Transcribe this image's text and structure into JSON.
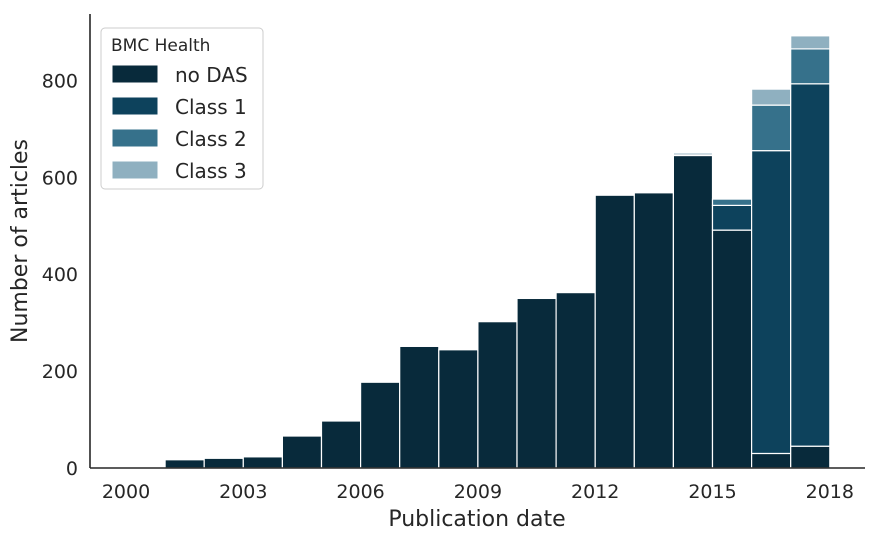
{
  "chart_data": {
    "type": "bar",
    "title": "",
    "xlabel": "Publication date",
    "ylabel": "Number of articles",
    "xlim": [
      2000,
      2018
    ],
    "ylim": [
      0,
      900
    ],
    "x_ticks": [
      "2000",
      "2003",
      "2006",
      "2009",
      "2012",
      "2015",
      "2018"
    ],
    "y_ticks": [
      "0",
      "200",
      "400",
      "600",
      "800"
    ],
    "grid": false,
    "stacked": true,
    "legend": {
      "title": "BMC Health",
      "placement": "top-left"
    },
    "bins": [
      [
        2000,
        2001
      ],
      [
        2001,
        2002
      ],
      [
        2002,
        2003
      ],
      [
        2003,
        2004
      ],
      [
        2004,
        2005
      ],
      [
        2005,
        2006
      ],
      [
        2006,
        2007
      ],
      [
        2007,
        2008
      ],
      [
        2008,
        2009
      ],
      [
        2009,
        2010
      ],
      [
        2010,
        2011
      ],
      [
        2011,
        2012
      ],
      [
        2012,
        2013
      ],
      [
        2013,
        2014
      ],
      [
        2014,
        2015
      ],
      [
        2015,
        2016
      ],
      [
        2016,
        2017
      ],
      [
        2017,
        2018
      ]
    ],
    "series": [
      {
        "name": "no DAS",
        "color": "#082a3b",
        "values": [
          0,
          17,
          20,
          23,
          66,
          97,
          177,
          251,
          244,
          302,
          350,
          362,
          563,
          568,
          645,
          491,
          30,
          45
        ]
      },
      {
        "name": "Class 1",
        "color": "#0d425c",
        "values": [
          0,
          0,
          0,
          0,
          0,
          0,
          0,
          0,
          0,
          0,
          0,
          0,
          0,
          0,
          3,
          51,
          625,
          748
        ]
      },
      {
        "name": "Class 2",
        "color": "#36718b",
        "values": [
          0,
          0,
          0,
          0,
          0,
          0,
          0,
          0,
          0,
          0,
          0,
          0,
          0,
          0,
          3,
          13,
          94,
          72
        ]
      },
      {
        "name": "Class 3",
        "color": "#8fb0c0",
        "values": [
          0,
          0,
          0,
          0,
          0,
          0,
          0,
          0,
          0,
          0,
          0,
          0,
          0,
          0,
          0,
          0,
          33,
          27
        ]
      }
    ]
  }
}
